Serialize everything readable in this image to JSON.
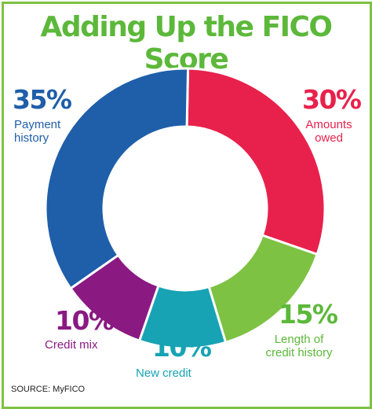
{
  "colors": {
    "border": "#7dc242",
    "title": "#5cb83a",
    "payment_history": "#1f5ea9",
    "amounts_owed": "#e8214c",
    "length_of_credit_history": "#7dc242",
    "new_credit": "#17a3b3",
    "credit_mix": "#8a1a82"
  },
  "chart_data": {
    "type": "pie",
    "style": "donut",
    "title": "Adding Up the FICO Score",
    "source": "SOURCE: MyFICO",
    "segments": [
      {
        "key": "payment_history",
        "value": 35,
        "display": "35%",
        "label_lines": [
          "Payment",
          "history"
        ],
        "color": "#1f5ea9"
      },
      {
        "key": "amounts_owed",
        "value": 30,
        "display": "30%",
        "label_lines": [
          "Amounts",
          "owed"
        ],
        "color": "#e8214c"
      },
      {
        "key": "length_of_credit_history",
        "value": 15,
        "display": "15%",
        "label_lines": [
          "Length of",
          "credit history"
        ],
        "color": "#7dc242"
      },
      {
        "key": "new_credit",
        "value": 10,
        "display": "10%",
        "label_lines": [
          "New credit"
        ],
        "color": "#17a3b3"
      },
      {
        "key": "credit_mix",
        "value": 10,
        "display": "10%",
        "label_lines": [
          "Credit mix"
        ],
        "color": "#8a1a82"
      }
    ]
  }
}
